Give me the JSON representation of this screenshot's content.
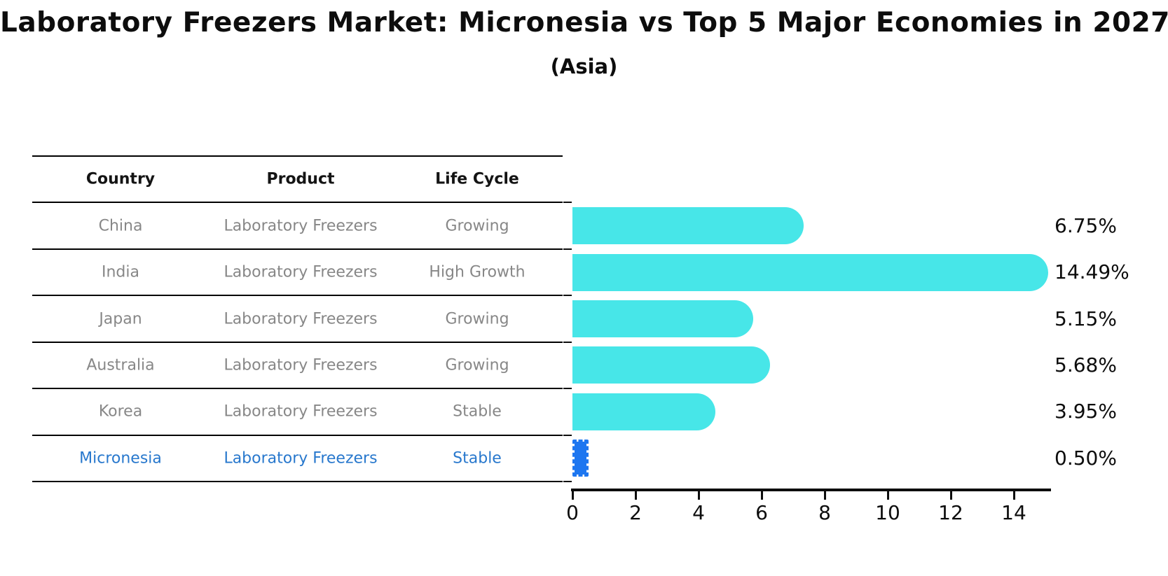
{
  "title": "Laboratory Freezers Market: Micronesia vs Top 5 Major Economies in 2027",
  "subtitle": "(Asia)",
  "table": {
    "headers": [
      "Country",
      "Product",
      "Life Cycle"
    ],
    "rows": [
      {
        "country": "China",
        "product": "Laboratory Freezers",
        "life_cycle": "Growing",
        "highlight": false
      },
      {
        "country": "India",
        "product": "Laboratory Freezers",
        "life_cycle": "High Growth",
        "highlight": false
      },
      {
        "country": "Japan",
        "product": "Laboratory Freezers",
        "life_cycle": "Growing",
        "highlight": false
      },
      {
        "country": "Australia",
        "product": "Laboratory Freezers",
        "life_cycle": "Growing",
        "highlight": false
      },
      {
        "country": "Korea",
        "product": "Laboratory Freezers",
        "life_cycle": "Stable",
        "highlight": false
      },
      {
        "country": "Micronesia",
        "product": "Laboratory Freezers",
        "life_cycle": "Stable",
        "highlight": true
      }
    ]
  },
  "chart_data": {
    "type": "bar",
    "orientation": "horizontal",
    "title": "Laboratory Freezers Market: Micronesia vs Top 5 Major Economies in 2027",
    "subtitle": "(Asia)",
    "categories": [
      "China",
      "India",
      "Japan",
      "Australia",
      "Korea",
      "Micronesia"
    ],
    "values": [
      6.75,
      14.49,
      5.15,
      5.68,
      3.95,
      0.5
    ],
    "value_labels": [
      "6.75%",
      "14.49%",
      "5.15%",
      "5.68%",
      "3.95%",
      "0.50%"
    ],
    "x_ticks": [
      0,
      2,
      4,
      6,
      8,
      10,
      12,
      14
    ],
    "xlim": [
      0,
      15.2
    ],
    "xlabel": "",
    "ylabel": "",
    "grid": false,
    "legend": false,
    "bar_color": "#47E6E8",
    "highlight_color": "#1D76F0",
    "highlight_index": 5,
    "highlight_text_color": "#2878CD"
  }
}
